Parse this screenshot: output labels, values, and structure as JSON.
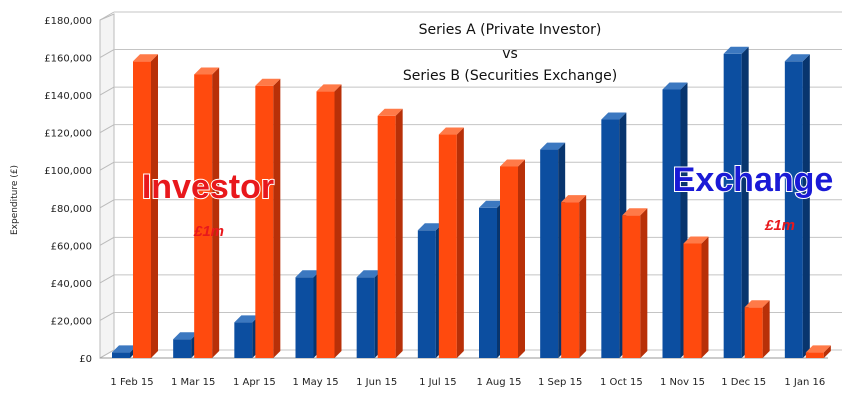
{
  "chart_data": {
    "type": "bar",
    "title_lines": [
      "Series A (Private Investor)",
      "vs",
      "Series B (Securities Exchange)"
    ],
    "ylabel": "Expenditure (£)",
    "xlabel": "",
    "ylim": [
      0,
      180000
    ],
    "y_ticks": [
      "£0",
      "£20,000",
      "£40,000",
      "£60,000",
      "£80,000",
      "£100,000",
      "£120,000",
      "£140,000",
      "£160,000",
      "£180,000"
    ],
    "categories": [
      "1 Feb 15",
      "1 Mar 15",
      "1 Apr 15",
      "1 May 15",
      "1 Jun 15",
      "1 Jul 15",
      "1 Aug 15",
      "1 Sep 15",
      "1 Oct 15",
      "1 Nov 15",
      "1 Dec 15",
      "1 Jan 16"
    ],
    "series": [
      {
        "color": "#0c4ea0",
        "side": "#08356e",
        "top": "#3c78c0",
        "values": [
          3000,
          10000,
          19000,
          43000,
          43000,
          68000,
          80000,
          111000,
          127000,
          143000,
          162000,
          158000
        ]
      },
      {
        "color": "#ff4a0e",
        "side": "#b83008",
        "top": "#ff7a48",
        "values": [
          158000,
          151000,
          145000,
          142000,
          129000,
          119000,
          102000,
          83000,
          76000,
          61000,
          27000,
          3000
        ]
      }
    ],
    "grid": true,
    "annotations": [
      {
        "text": "Investor",
        "color": "#e8181c",
        "stroke": "#ffffff"
      },
      {
        "text": "£1m",
        "color": "#e8181c"
      },
      {
        "text": "Exchange",
        "color": "#1a1ad6",
        "stroke": "#ffffff"
      },
      {
        "text": "£1m",
        "color": "#e8181c"
      }
    ]
  }
}
